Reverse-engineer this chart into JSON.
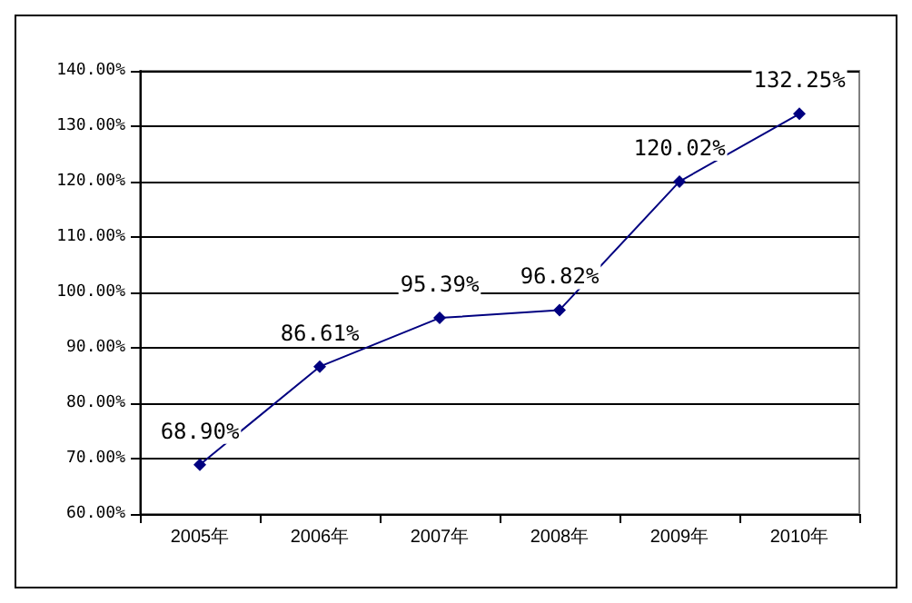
{
  "chart_data": {
    "type": "line",
    "categories": [
      "2005年",
      "2006年",
      "2007年",
      "2008年",
      "2009年",
      "2010年"
    ],
    "series": [
      {
        "color": "#000080",
        "values": [
          68.9,
          86.61,
          95.39,
          96.82,
          120.02,
          132.25
        ],
        "value_labels": [
          "68.90%",
          "86.61%",
          "95.39%",
          "96.82%",
          "120.02%",
          "132.25%"
        ]
      }
    ],
    "ylim": [
      60,
      140
    ],
    "yticks": [
      {
        "value": 60,
        "label": "60.00%"
      },
      {
        "value": 70,
        "label": "70.00%"
      },
      {
        "value": 80,
        "label": "80.00%"
      },
      {
        "value": 90,
        "label": "90.00%"
      },
      {
        "value": 100,
        "label": "100.00%"
      },
      {
        "value": 110,
        "label": "110.00%"
      },
      {
        "value": 120,
        "label": "120.00%"
      },
      {
        "value": 130,
        "label": "130.00%"
      },
      {
        "value": 140,
        "label": "140.00%"
      }
    ],
    "grid": "y",
    "marker": "diamond",
    "line_style": "solid"
  }
}
